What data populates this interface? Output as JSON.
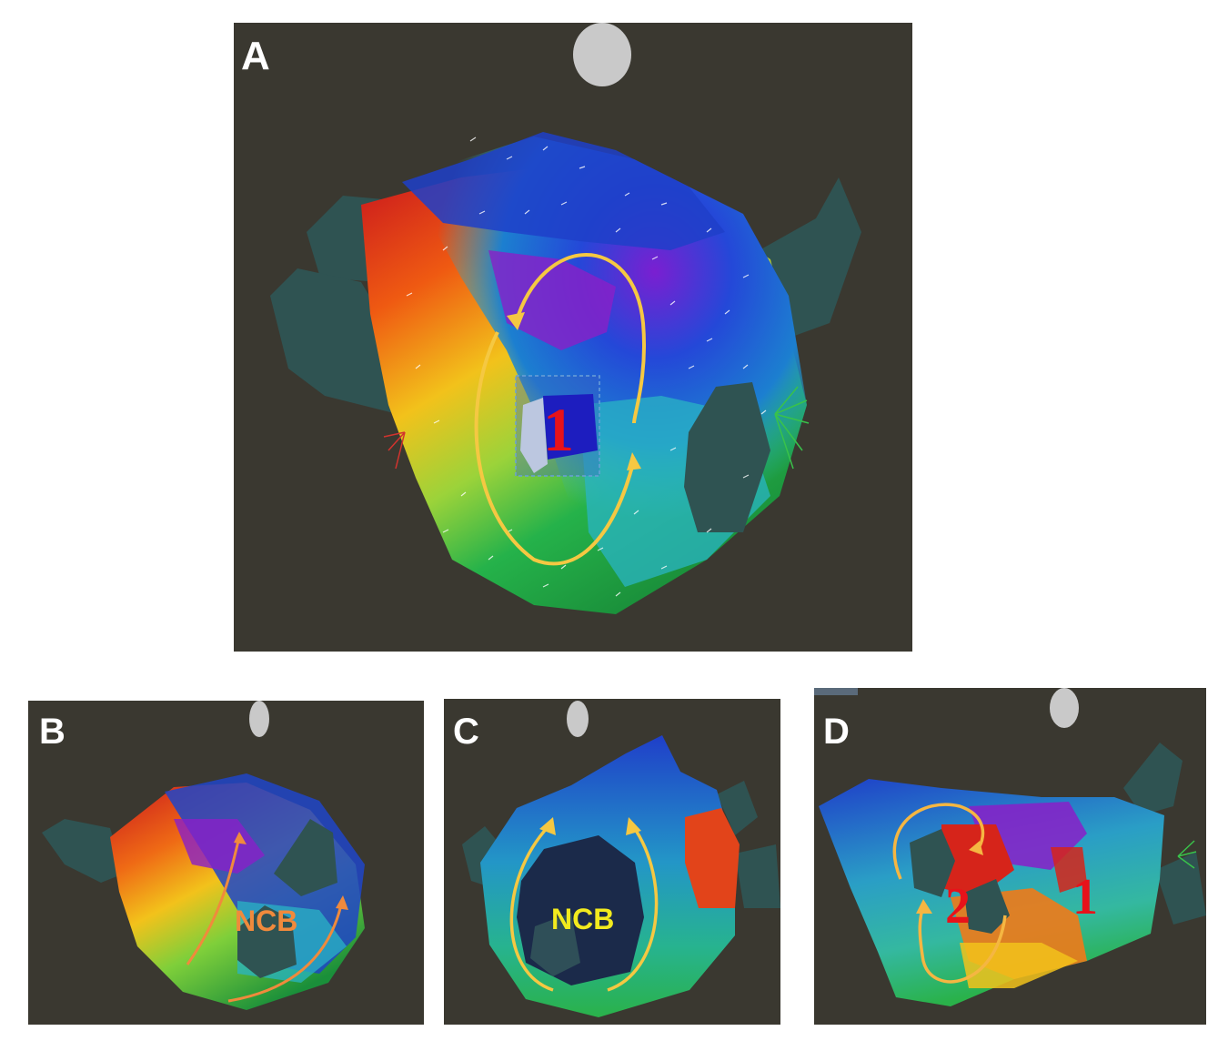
{
  "panels": {
    "A": {
      "letter": "A",
      "site_label": "1"
    },
    "B": {
      "letter": "B",
      "ncb_label": "NCB"
    },
    "C": {
      "letter": "C",
      "ncb_label": "NCB"
    },
    "D": {
      "letter": "D",
      "site_label_1": "1",
      "site_label_2": "2"
    }
  },
  "colors": {
    "background": "#3a3830",
    "vein": "#2f4f4f",
    "arrow_yellow": "#f5c842",
    "arrow_orange": "#f08a3c",
    "label_red": "#e8121a",
    "label_orange": "#f08a3c",
    "label_yellow": "#f2ea1e"
  }
}
